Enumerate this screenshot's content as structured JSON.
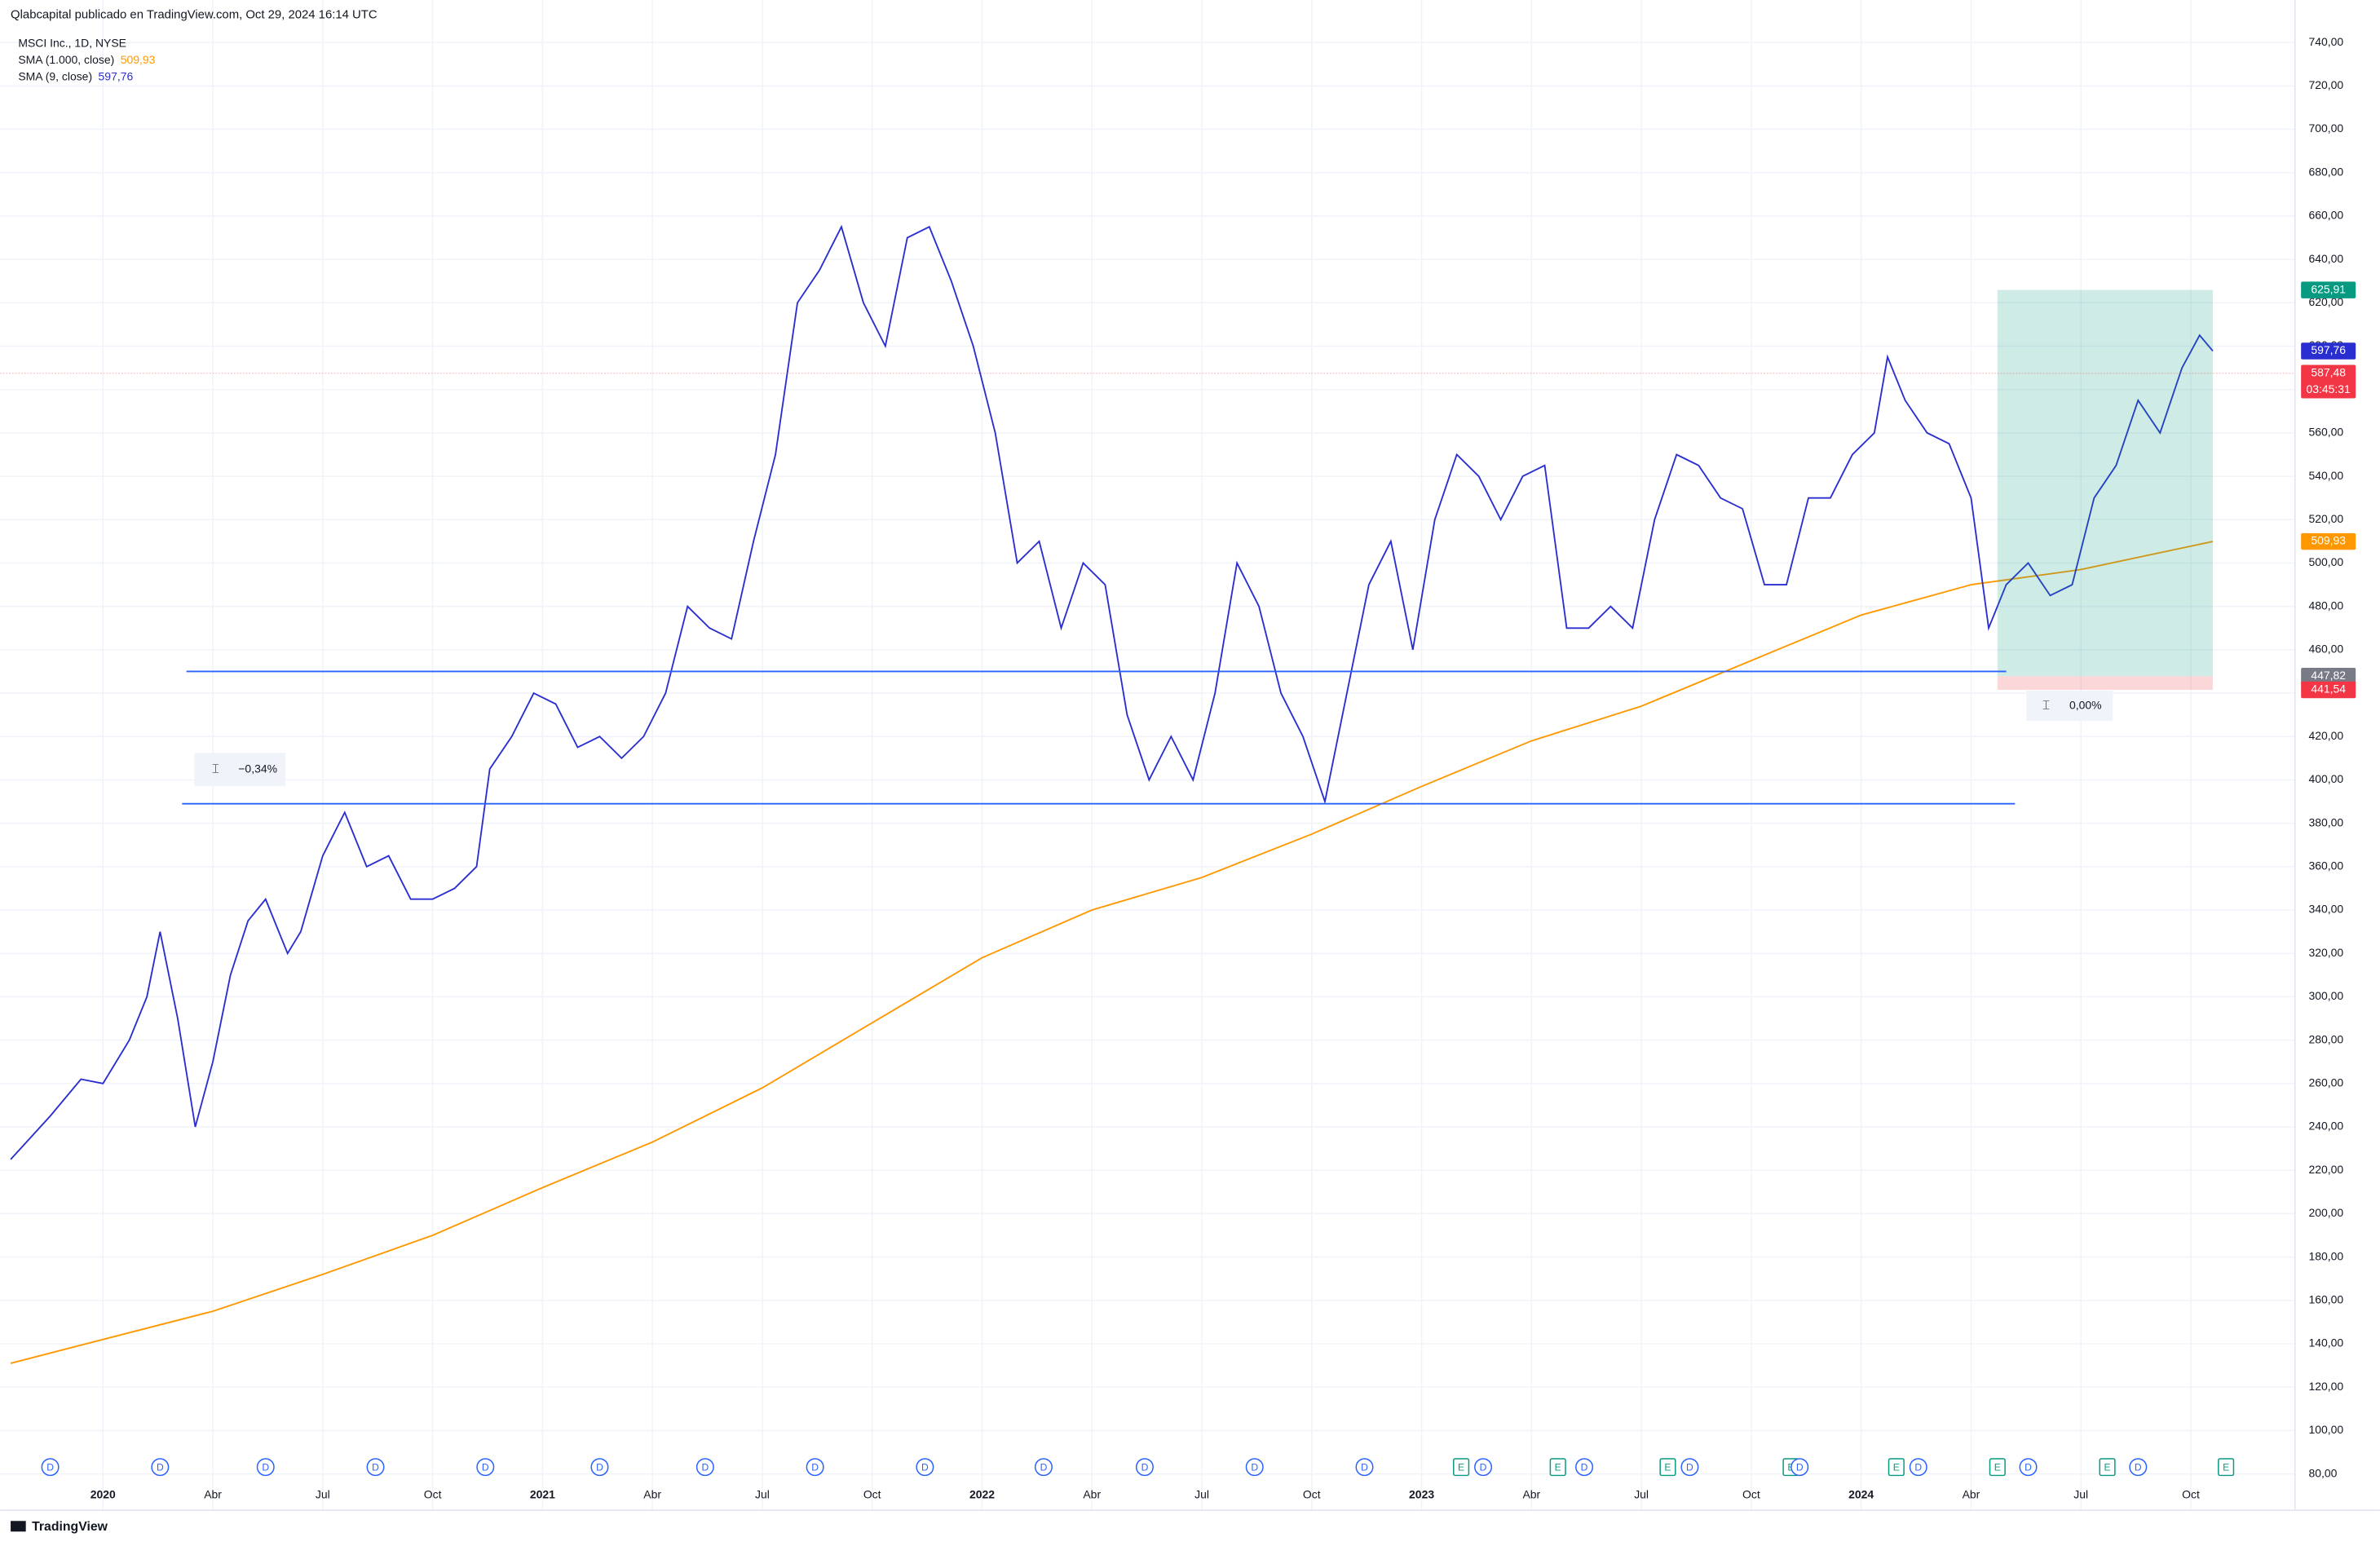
{
  "chart_data": {
    "type": "line",
    "header": {
      "publisher": "Qlabcapital publicado en TradingView.com, Oct 29, 2024 16:14 UTC",
      "symbol": "MSCI Inc., 1D, NYSE"
    },
    "footer": "TradingView",
    "xlim": [
      2019.79,
      2024.98
    ],
    "ylim": [
      80,
      740
    ],
    "grid": true,
    "xticks": [
      2020,
      {
        "value": 2020.25,
        "label": "Abr"
      },
      {
        "value": 2020.5,
        "label": "Jul"
      },
      {
        "value": 2020.75,
        "label": "Oct"
      },
      2021,
      {
        "value": 2021.25,
        "label": "Abr"
      },
      {
        "value": 2021.5,
        "label": "Jul"
      },
      {
        "value": 2021.75,
        "label": "Oct"
      },
      2022,
      {
        "value": 2022.25,
        "label": "Abr"
      },
      {
        "value": 2022.5,
        "label": "Jul"
      },
      {
        "value": 2022.75,
        "label": "Oct"
      },
      2023,
      {
        "value": 2023.25,
        "label": "Abr"
      },
      {
        "value": 2023.5,
        "label": "Jul"
      },
      {
        "value": 2023.75,
        "label": "Oct"
      },
      2024,
      {
        "value": 2024.25,
        "label": "Abr"
      },
      {
        "value": 2024.5,
        "label": "Jul"
      },
      {
        "value": 2024.75,
        "label": "Oct"
      }
    ],
    "yticks": [
      {
        "value": 80,
        "label": "80,00"
      },
      {
        "value": 100,
        "label": "100,00"
      },
      {
        "value": 120,
        "label": "120,00"
      },
      {
        "value": 140,
        "label": "140,00"
      },
      {
        "value": 160,
        "label": "160,00"
      },
      {
        "value": 180,
        "label": "180,00"
      },
      {
        "value": 200,
        "label": "200,00"
      },
      {
        "value": 220,
        "label": "220,00"
      },
      {
        "value": 240,
        "label": "240,00"
      },
      {
        "value": 260,
        "label": "260,00"
      },
      {
        "value": 280,
        "label": "280,00"
      },
      {
        "value": 300,
        "label": "300,00"
      },
      {
        "value": 320,
        "label": "320,00"
      },
      {
        "value": 340,
        "label": "340,00"
      },
      {
        "value": 360,
        "label": "360,00"
      },
      {
        "value": 380,
        "label": "380,00"
      },
      {
        "value": 400,
        "label": "400,00"
      },
      {
        "value": 420,
        "label": "420,00"
      },
      {
        "value": 440,
        "label": "440,00"
      },
      {
        "value": 460,
        "label": "460,00"
      },
      {
        "value": 480,
        "label": "480,00"
      },
      {
        "value": 500,
        "label": "500,00"
      },
      {
        "value": 520,
        "label": "520,00"
      },
      {
        "value": 540,
        "label": "540,00"
      },
      {
        "value": 560,
        "label": "560,00"
      },
      {
        "value": 580,
        "label": "580,00"
      },
      {
        "value": 600,
        "label": "600,00"
      },
      {
        "value": 620,
        "label": "620,00"
      },
      {
        "value": 640,
        "label": "640,00"
      },
      {
        "value": 660,
        "label": "660,00"
      },
      {
        "value": 680,
        "label": "680,00"
      },
      {
        "value": 700,
        "label": "700,00"
      },
      {
        "value": 720,
        "label": "720,00"
      },
      {
        "value": 740,
        "label": "740,00"
      }
    ],
    "series": [
      {
        "name": "SMA (1.000, close)",
        "color": "#ff9800",
        "last_value": 509.93,
        "last_label": "509,93",
        "x": [
          2019.79,
          2020.0,
          2020.25,
          2020.5,
          2020.75,
          2021.0,
          2021.25,
          2021.5,
          2021.75,
          2022.0,
          2022.25,
          2022.5,
          2022.75,
          2023.0,
          2023.25,
          2023.5,
          2023.75,
          2024.0,
          2024.25,
          2024.5,
          2024.8
        ],
        "values": [
          131,
          142,
          155,
          172,
          190,
          212,
          233,
          258,
          288,
          318,
          340,
          355,
          375,
          397,
          418,
          434,
          455,
          476,
          490,
          497,
          509.93
        ]
      },
      {
        "name": "SMA (9, close)",
        "color": "#2a2ed0",
        "last_value": 597.76,
        "last_label": "597,76",
        "x": [
          2019.79,
          2019.88,
          2019.95,
          2020.0,
          2020.06,
          2020.1,
          2020.13,
          2020.17,
          2020.21,
          2020.25,
          2020.29,
          2020.33,
          2020.37,
          2020.42,
          2020.45,
          2020.5,
          2020.55,
          2020.6,
          2020.65,
          2020.7,
          2020.75,
          2020.8,
          2020.85,
          2020.88,
          2020.93,
          2020.98,
          2021.03,
          2021.08,
          2021.13,
          2021.18,
          2021.23,
          2021.28,
          2021.33,
          2021.38,
          2021.43,
          2021.48,
          2021.53,
          2021.58,
          2021.63,
          2021.68,
          2021.73,
          2021.78,
          2021.83,
          2021.88,
          2021.93,
          2021.98,
          2022.03,
          2022.08,
          2022.13,
          2022.18,
          2022.23,
          2022.28,
          2022.33,
          2022.38,
          2022.43,
          2022.48,
          2022.53,
          2022.58,
          2022.63,
          2022.68,
          2022.73,
          2022.78,
          2022.83,
          2022.88,
          2022.93,
          2022.98,
          2023.03,
          2023.08,
          2023.13,
          2023.18,
          2023.23,
          2023.28,
          2023.33,
          2023.38,
          2023.43,
          2023.48,
          2023.53,
          2023.58,
          2023.63,
          2023.68,
          2023.73,
          2023.78,
          2023.83,
          2023.88,
          2023.93,
          2023.98,
          2024.03,
          2024.06,
          2024.1,
          2024.15,
          2024.2,
          2024.25,
          2024.29,
          2024.33,
          2024.38,
          2024.43,
          2024.48,
          2024.53,
          2024.58,
          2024.63,
          2024.68,
          2024.73,
          2024.77,
          2024.8
        ],
        "values": [
          225,
          245,
          262,
          260,
          280,
          300,
          330,
          290,
          240,
          270,
          310,
          335,
          345,
          320,
          330,
          365,
          385,
          360,
          365,
          345,
          345,
          350,
          360,
          405,
          420,
          440,
          435,
          415,
          420,
          410,
          420,
          440,
          480,
          470,
          465,
          510,
          550,
          620,
          635,
          655,
          620,
          600,
          650,
          655,
          630,
          600,
          560,
          500,
          510,
          470,
          500,
          490,
          430,
          400,
          420,
          400,
          440,
          500,
          480,
          440,
          420,
          390,
          440,
          490,
          510,
          460,
          520,
          550,
          540,
          520,
          540,
          545,
          470,
          470,
          480,
          470,
          520,
          550,
          545,
          530,
          525,
          490,
          490,
          530,
          530,
          550,
          560,
          595,
          575,
          560,
          555,
          530,
          470,
          490,
          500,
          485,
          490,
          530,
          545,
          575,
          560,
          590,
          605,
          597.76
        ]
      }
    ],
    "last_price": 587.48,
    "hlines": [
      {
        "value": 450,
        "x": [
          2020.19,
          2024.33
        ]
      },
      {
        "value": 389,
        "x": [
          2020.18,
          2024.35
        ]
      }
    ],
    "measure": {
      "label": "−0,34%"
    },
    "position": {
      "x": [
        2024.31,
        2024.8
      ],
      "target": 625.91,
      "entry": 447.82,
      "stop": 441.54,
      "label": "0,00%"
    },
    "price_labels": [
      {
        "value": 625.91,
        "label": "625,91",
        "color": "#089981"
      },
      {
        "value": 597.76,
        "label": "597,76",
        "color": "#2a2ed0"
      },
      {
        "value": 587.48,
        "label": "587,48",
        "color": "#f23645",
        "countdown": "03:45:31"
      },
      {
        "value": 509.93,
        "label": "509,93",
        "color": "#ff9800"
      },
      {
        "value": 447.82,
        "label": "447,82",
        "color": "#787b86"
      },
      {
        "value": 441.54,
        "label": "441,54",
        "color": "#f23645"
      }
    ],
    "events": [
      {
        "x": 2019.88,
        "label": "D"
      },
      {
        "x": 2020.13,
        "label": "D"
      },
      {
        "x": 2020.37,
        "label": "D"
      },
      {
        "x": 2020.62,
        "label": "D"
      },
      {
        "x": 2020.87,
        "label": "D"
      },
      {
        "x": 2021.13,
        "label": "D"
      },
      {
        "x": 2021.37,
        "label": "D"
      },
      {
        "x": 2021.62,
        "label": "D"
      },
      {
        "x": 2021.87,
        "label": "D"
      },
      {
        "x": 2022.14,
        "label": "D"
      },
      {
        "x": 2022.37,
        "label": "D"
      },
      {
        "x": 2022.62,
        "label": "D"
      },
      {
        "x": 2022.87,
        "label": "D"
      },
      {
        "x": 2023.09,
        "label": "E"
      },
      {
        "x": 2023.14,
        "label": "D"
      },
      {
        "x": 2023.31,
        "label": "E"
      },
      {
        "x": 2023.37,
        "label": "D"
      },
      {
        "x": 2023.56,
        "label": "E"
      },
      {
        "x": 2023.61,
        "label": "D"
      },
      {
        "x": 2023.84,
        "label": "E"
      },
      {
        "x": 2023.86,
        "label": "D"
      },
      {
        "x": 2024.08,
        "label": "E"
      },
      {
        "x": 2024.13,
        "label": "D"
      },
      {
        "x": 2024.31,
        "label": "E"
      },
      {
        "x": 2024.38,
        "label": "D"
      },
      {
        "x": 2024.56,
        "label": "E"
      },
      {
        "x": 2024.63,
        "label": "D"
      },
      {
        "x": 2024.83,
        "label": "E"
      }
    ]
  }
}
